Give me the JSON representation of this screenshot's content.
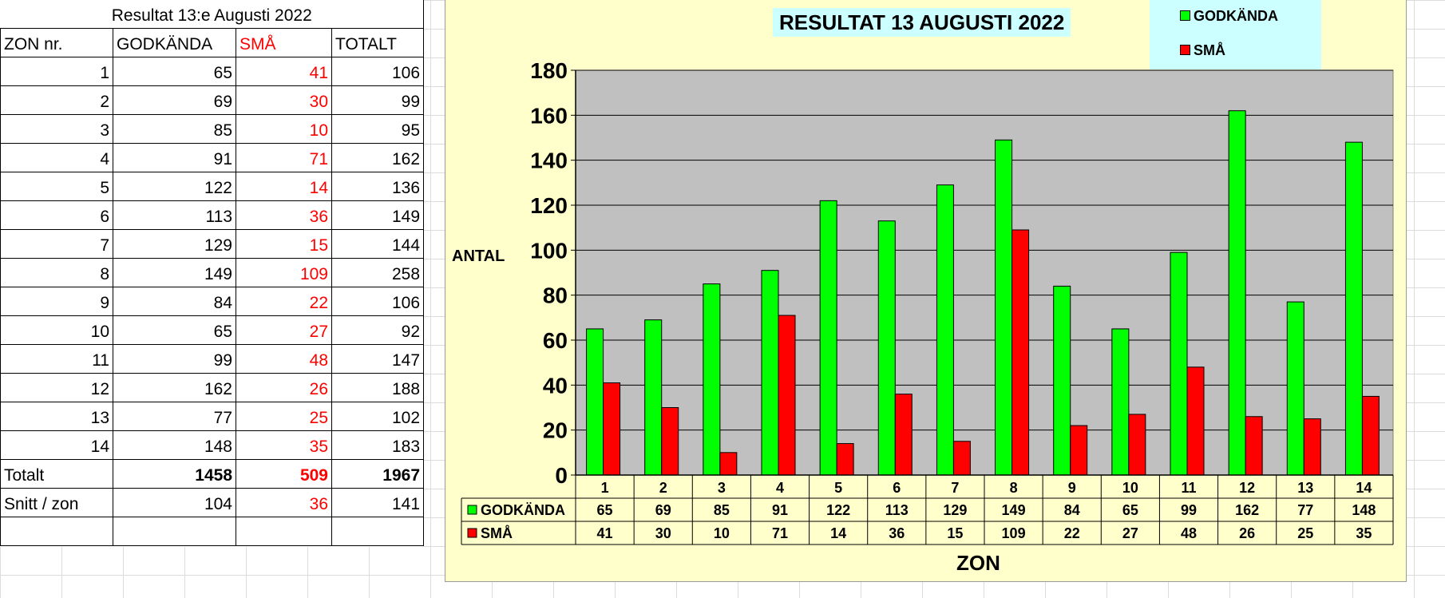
{
  "sheet": {
    "title": "Resultat 13:e Augusti 2022",
    "headers": [
      "ZON nr.",
      "GODKÄNDA",
      "SMÅ",
      "TOTALT"
    ],
    "rows": [
      [
        "1",
        "65",
        "41",
        "106"
      ],
      [
        "2",
        "69",
        "30",
        "99"
      ],
      [
        "3",
        "85",
        "10",
        "95"
      ],
      [
        "4",
        "91",
        "71",
        "162"
      ],
      [
        "5",
        "122",
        "14",
        "136"
      ],
      [
        "6",
        "113",
        "36",
        "149"
      ],
      [
        "7",
        "129",
        "15",
        "144"
      ],
      [
        "8",
        "149",
        "109",
        "258"
      ],
      [
        "9",
        "84",
        "22",
        "106"
      ],
      [
        "10",
        "65",
        "27",
        "92"
      ],
      [
        "11",
        "99",
        "48",
        "147"
      ],
      [
        "12",
        "162",
        "26",
        "188"
      ],
      [
        "13",
        "77",
        "25",
        "102"
      ],
      [
        "14",
        "148",
        "35",
        "183"
      ]
    ],
    "totals": [
      "Totalt",
      "1458",
      "509",
      "1967"
    ],
    "avg": [
      "Snitt / zon",
      "104",
      "36",
      "141"
    ]
  },
  "chart_data": {
    "type": "bar",
    "title": "RESULTAT 13 AUGUSTI 2022",
    "xlabel": "ZON",
    "ylabel": "ANTAL",
    "categories": [
      "1",
      "2",
      "3",
      "4",
      "5",
      "6",
      "7",
      "8",
      "9",
      "10",
      "11",
      "12",
      "13",
      "14"
    ],
    "series": [
      {
        "name": "GODKÄNDA",
        "color": "#00ff00",
        "values": [
          65,
          69,
          85,
          91,
          122,
          113,
          129,
          149,
          84,
          65,
          99,
          162,
          77,
          148
        ]
      },
      {
        "name": "SMÅ",
        "color": "#ff0000",
        "values": [
          41,
          30,
          10,
          71,
          14,
          36,
          15,
          109,
          22,
          27,
          48,
          26,
          25,
          35
        ]
      }
    ],
    "ylim": [
      0,
      180
    ],
    "yticks": [
      0,
      20,
      40,
      60,
      80,
      100,
      120,
      140,
      160,
      180
    ],
    "grid": true,
    "legend": "top-right",
    "data_table": true,
    "plot_background": "#c0c0c0",
    "chart_background": "#ffffcc"
  }
}
